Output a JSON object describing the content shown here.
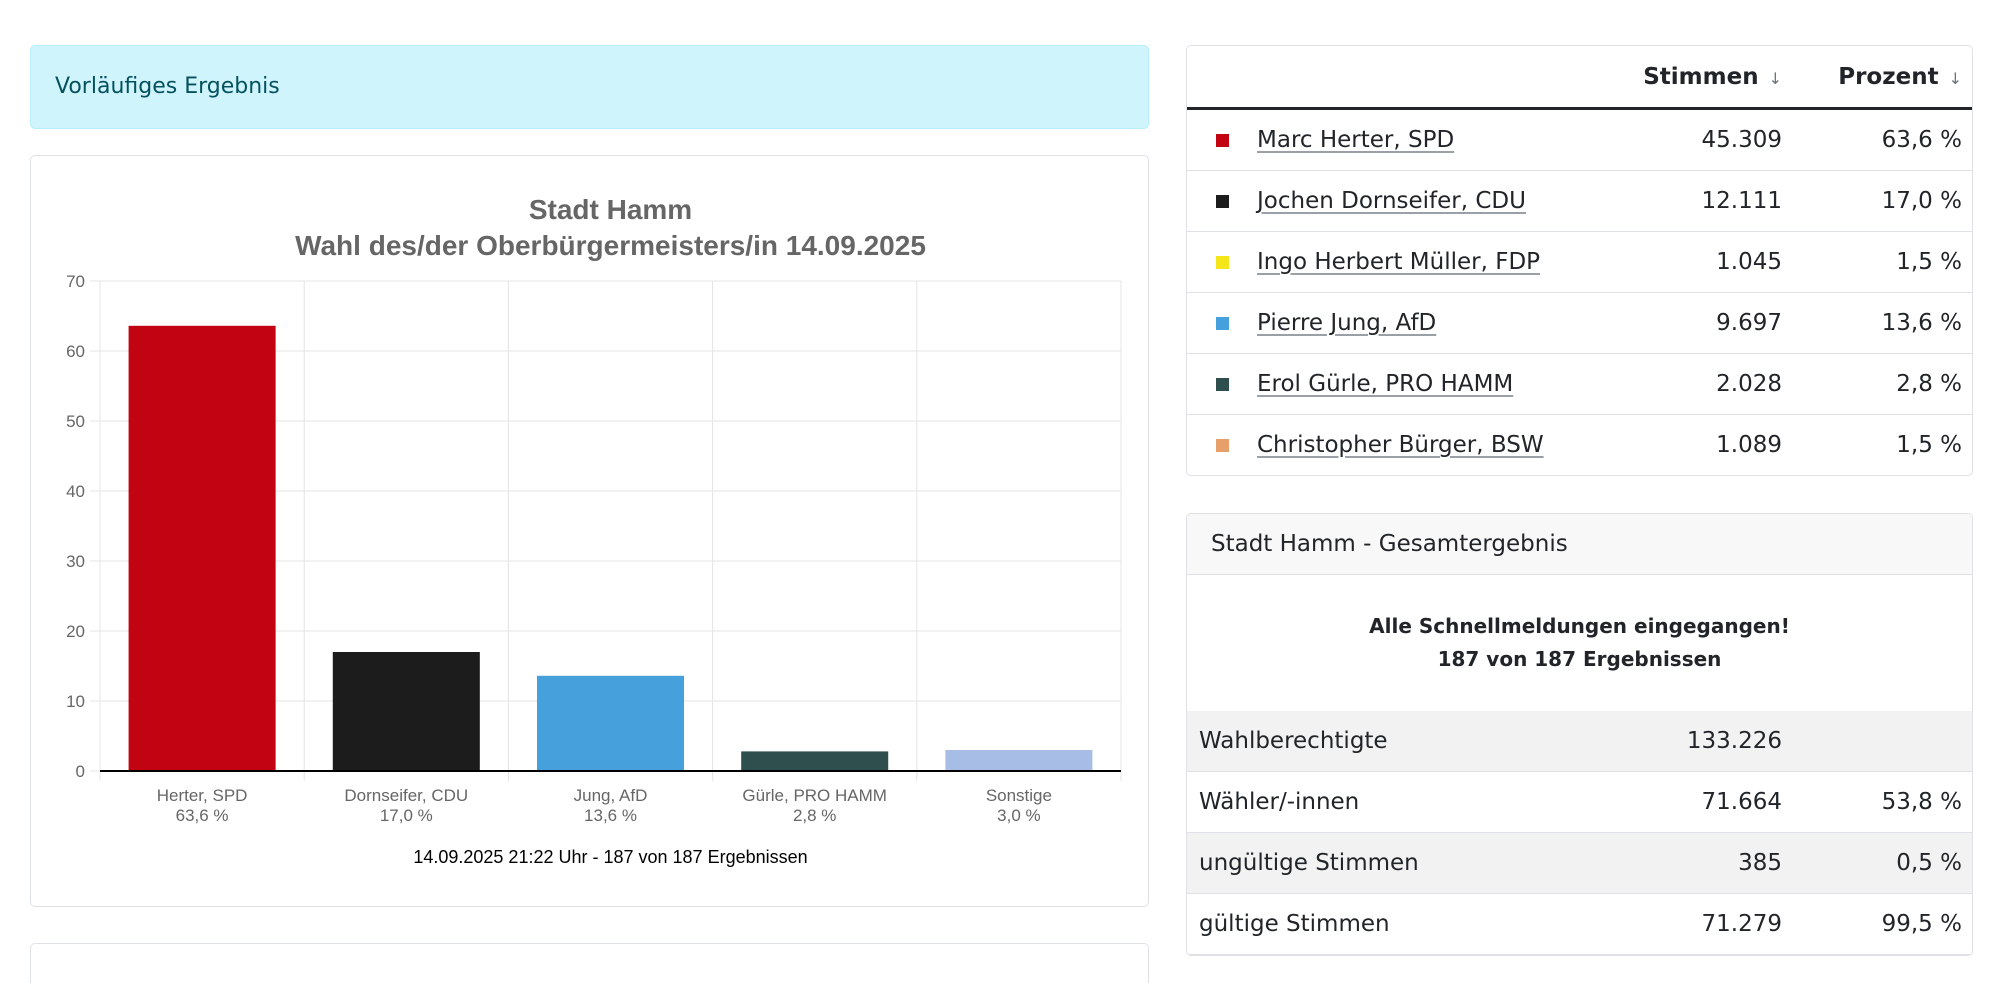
{
  "alert": {
    "text": "Vorläufiges Ergebnis"
  },
  "chart_data": {
    "type": "bar",
    "title": "Stadt Hamm",
    "subtitle": "Wahl des/der Oberbürgermeisters/in 14.09.2025",
    "categories": [
      "Herter, SPD",
      "Dornseifer, CDU",
      "Jung, AfD",
      "Gürle, PRO HAMM",
      "Sonstige"
    ],
    "value_labels": [
      "63,6 %",
      "17,0 %",
      "13,6 %",
      "2,8 %",
      "3,0 %"
    ],
    "values": [
      63.6,
      17.0,
      13.6,
      2.8,
      3.0
    ],
    "colors": [
      "#c20412",
      "#1c1c1c",
      "#46a0dc",
      "#2f4f4f",
      "#a8bde6"
    ],
    "ylim": [
      0,
      70
    ],
    "yticks": [
      0,
      10,
      20,
      30,
      40,
      50,
      60,
      70
    ],
    "grid": true,
    "footnote": "14.09.2025 21:22 Uhr - 187 von 187 Ergebnissen"
  },
  "results_table": {
    "col_votes": "Stimmen",
    "col_percent": "Prozent",
    "sort_icon": "↓",
    "rows": [
      {
        "name": "Marc Herter, SPD",
        "color": "#c20412",
        "votes": "45.309",
        "percent": "63,6 %"
      },
      {
        "name": "Jochen Dornseifer, CDU",
        "color": "#1c1c1c",
        "votes": "12.111",
        "percent": "17,0 %"
      },
      {
        "name": "Ingo Herbert Müller, FDP",
        "color": "#f5e61a",
        "votes": "1.045",
        "percent": "1,5 %"
      },
      {
        "name": "Pierre Jung, AfD",
        "color": "#46a0dc",
        "votes": "9.697",
        "percent": "13,6 %"
      },
      {
        "name": "Erol Gürle, PRO HAMM",
        "color": "#2f4f4f",
        "votes": "2.028",
        "percent": "2,8 %"
      },
      {
        "name": "Christopher Bürger, BSW",
        "color": "#e8a06a",
        "votes": "1.089",
        "percent": "1,5 %"
      }
    ]
  },
  "summary": {
    "header": "Stadt Hamm - Gesamtergebnis",
    "notice_line1": "Alle Schnellmeldungen eingegangen!",
    "notice_line2": "187 von 187 Ergebnissen",
    "rows": [
      {
        "label": "Wahlberechtigte",
        "value": "133.226",
        "percent": ""
      },
      {
        "label": "Wähler/-innen",
        "value": "71.664",
        "percent": "53,8 %"
      },
      {
        "label": "ungültige Stimmen",
        "value": "385",
        "percent": "0,5 %"
      },
      {
        "label": "gültige Stimmen",
        "value": "71.279",
        "percent": "99,5 %"
      }
    ]
  }
}
